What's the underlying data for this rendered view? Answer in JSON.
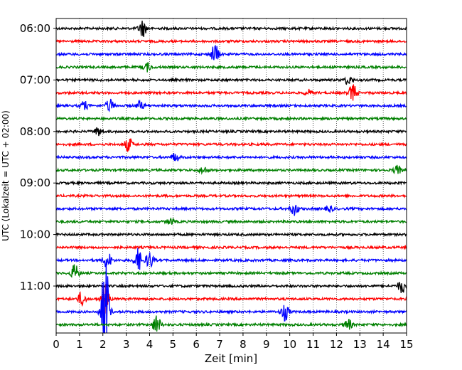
{
  "chart_data": {
    "type": "line",
    "title": "",
    "xlabel": "Zeit  [min]",
    "ylabel": "UTC (Lokalzeit = UTC + 02:00)",
    "xlim": [
      0,
      15
    ],
    "x_ticks": [
      "0",
      "1",
      "2",
      "3",
      "4",
      "5",
      "6",
      "7",
      "8",
      "9",
      "10",
      "11",
      "12",
      "13",
      "14",
      "15"
    ],
    "y_tick_labels": [
      "06:00",
      "07:00",
      "08:00",
      "09:00",
      "10:00",
      "11:00"
    ],
    "grid": "vertical dotted",
    "trace_interval_minutes": 15,
    "trace_colors": [
      "#000000",
      "#ff0000",
      "#0000ff",
      "#008000"
    ],
    "series": [
      {
        "start": "06:00",
        "color": "#000000",
        "events": [
          {
            "x": 3.7,
            "amp": 12
          }
        ]
      },
      {
        "start": "06:15",
        "color": "#ff0000",
        "events": []
      },
      {
        "start": "06:30",
        "color": "#0000ff",
        "events": [
          {
            "x": 6.8,
            "amp": 14
          }
        ]
      },
      {
        "start": "06:45",
        "color": "#008000",
        "events": [
          {
            "x": 3.9,
            "amp": 6
          }
        ]
      },
      {
        "start": "07:00",
        "color": "#000000",
        "events": [
          {
            "x": 12.5,
            "amp": 6
          }
        ]
      },
      {
        "start": "07:15",
        "color": "#ff0000",
        "events": [
          {
            "x": 12.7,
            "amp": 12
          },
          {
            "x": 10.8,
            "amp": 4
          }
        ]
      },
      {
        "start": "07:30",
        "color": "#0000ff",
        "events": [
          {
            "x": 1.2,
            "amp": 6
          },
          {
            "x": 2.3,
            "amp": 9
          },
          {
            "x": 3.6,
            "amp": 6
          }
        ]
      },
      {
        "start": "07:45",
        "color": "#008000",
        "events": []
      },
      {
        "start": "08:00",
        "color": "#000000",
        "events": [
          {
            "x": 1.8,
            "amp": 6
          }
        ]
      },
      {
        "start": "08:15",
        "color": "#ff0000",
        "events": [
          {
            "x": 3.1,
            "amp": 10
          }
        ]
      },
      {
        "start": "08:30",
        "color": "#0000ff",
        "events": [
          {
            "x": 5.1,
            "amp": 6
          }
        ]
      },
      {
        "start": "08:45",
        "color": "#008000",
        "events": [
          {
            "x": 6.3,
            "amp": 5
          },
          {
            "x": 14.6,
            "amp": 6
          }
        ]
      },
      {
        "start": "09:00",
        "color": "#000000",
        "events": []
      },
      {
        "start": "09:15",
        "color": "#ff0000",
        "events": []
      },
      {
        "start": "09:30",
        "color": "#0000ff",
        "events": [
          {
            "x": 10.2,
            "amp": 9
          },
          {
            "x": 11.7,
            "amp": 4
          }
        ]
      },
      {
        "start": "09:45",
        "color": "#008000",
        "events": [
          {
            "x": 4.9,
            "amp": 4
          }
        ]
      },
      {
        "start": "10:00",
        "color": "#000000",
        "events": []
      },
      {
        "start": "10:15",
        "color": "#ff0000",
        "events": []
      },
      {
        "start": "10:30",
        "color": "#0000ff",
        "events": [
          {
            "x": 2.2,
            "amp": 12
          },
          {
            "x": 3.5,
            "amp": 16
          },
          {
            "x": 4.0,
            "amp": 12
          }
        ]
      },
      {
        "start": "10:45",
        "color": "#008000",
        "events": [
          {
            "x": 0.8,
            "amp": 12
          }
        ]
      },
      {
        "start": "11:00",
        "color": "#000000",
        "events": [
          {
            "x": 14.8,
            "amp": 10
          }
        ]
      },
      {
        "start": "11:15",
        "color": "#ff0000",
        "events": [
          {
            "x": 1.1,
            "amp": 10
          },
          {
            "x": 2.1,
            "amp": 20
          }
        ]
      },
      {
        "start": "11:30",
        "color": "#0000ff",
        "events": [
          {
            "x": 2.1,
            "amp": 80
          },
          {
            "x": 9.8,
            "amp": 12
          }
        ]
      },
      {
        "start": "11:45",
        "color": "#008000",
        "events": [
          {
            "x": 4.3,
            "amp": 14
          },
          {
            "x": 12.5,
            "amp": 8
          }
        ]
      }
    ]
  }
}
